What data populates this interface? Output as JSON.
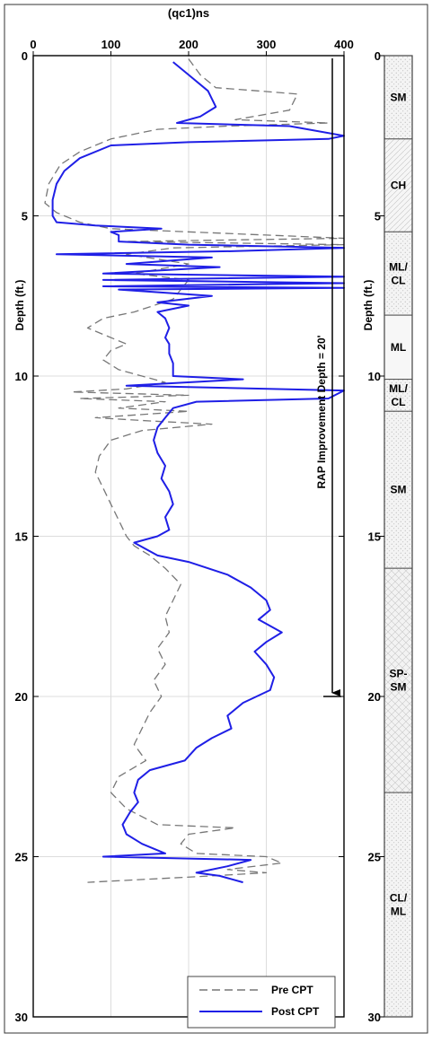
{
  "chart_data": [
    {
      "type": "line",
      "xlabel": "(qc1)ns",
      "ylabel": "Depth (ft.)",
      "xlim": [
        0,
        400
      ],
      "ylim": [
        0,
        30
      ],
      "y_inverted": true,
      "x_ticks": [
        0,
        100,
        200,
        300,
        400
      ],
      "y_ticks": [
        0,
        5,
        10,
        15,
        20,
        25,
        30
      ],
      "grid": true,
      "legend_position": "bottom-right",
      "series": [
        {
          "name": "Pre CPT",
          "color": "#777777",
          "style": "dashed",
          "points": [
            [
              200,
              0.1
            ],
            [
              215,
              0.6
            ],
            [
              235,
              1.0
            ],
            [
              290,
              1.1
            ],
            [
              340,
              1.2
            ],
            [
              330,
              1.7
            ],
            [
              260,
              2.0
            ],
            [
              380,
              2.1
            ],
            [
              250,
              2.2
            ],
            [
              160,
              2.3
            ],
            [
              100,
              2.6
            ],
            [
              60,
              3.0
            ],
            [
              35,
              3.4
            ],
            [
              20,
              4.0
            ],
            [
              15,
              4.6
            ],
            [
              30,
              4.9
            ],
            [
              60,
              5.2
            ],
            [
              100,
              5.4
            ],
            [
              300,
              5.6
            ],
            [
              400,
              5.7
            ],
            [
              120,
              5.8
            ],
            [
              400,
              5.9
            ],
            [
              180,
              6.0
            ],
            [
              120,
              6.2
            ],
            [
              200,
              6.5
            ],
            [
              130,
              6.8
            ],
            [
              200,
              7.0
            ],
            [
              190,
              7.3
            ],
            [
              180,
              7.6
            ],
            [
              130,
              8.0
            ],
            [
              90,
              8.2
            ],
            [
              70,
              8.5
            ],
            [
              90,
              8.7
            ],
            [
              120,
              9.0
            ],
            [
              100,
              9.2
            ],
            [
              90,
              9.5
            ],
            [
              110,
              9.8
            ],
            [
              140,
              10.0
            ],
            [
              170,
              10.2
            ],
            [
              120,
              10.4
            ],
            [
              50,
              10.5
            ],
            [
              200,
              10.6
            ],
            [
              60,
              10.7
            ],
            [
              170,
              10.8
            ],
            [
              110,
              11.0
            ],
            [
              200,
              11.1
            ],
            [
              80,
              11.3
            ],
            [
              150,
              11.4
            ],
            [
              230,
              11.5
            ],
            [
              140,
              11.7
            ],
            [
              100,
              12.0
            ],
            [
              85,
              12.5
            ],
            [
              80,
              13.0
            ],
            [
              90,
              13.5
            ],
            [
              100,
              14.0
            ],
            [
              110,
              14.5
            ],
            [
              120,
              15.0
            ],
            [
              130,
              15.3
            ],
            [
              150,
              15.6
            ],
            [
              170,
              16.0
            ],
            [
              190,
              16.5
            ],
            [
              180,
              17.0
            ],
            [
              170,
              17.5
            ],
            [
              175,
              18.0
            ],
            [
              160,
              18.5
            ],
            [
              170,
              19.0
            ],
            [
              155,
              19.5
            ],
            [
              165,
              20.0
            ],
            [
              150,
              20.5
            ],
            [
              140,
              21.0
            ],
            [
              130,
              21.5
            ],
            [
              145,
              22.0
            ],
            [
              110,
              22.5
            ],
            [
              100,
              23.0
            ],
            [
              120,
              23.5
            ],
            [
              160,
              24.0
            ],
            [
              260,
              24.1
            ],
            [
              200,
              24.3
            ],
            [
              190,
              24.6
            ],
            [
              210,
              24.9
            ],
            [
              300,
              25.0
            ],
            [
              320,
              25.2
            ],
            [
              250,
              25.4
            ],
            [
              300,
              25.5
            ],
            [
              230,
              25.6
            ],
            [
              150,
              25.7
            ],
            [
              70,
              25.8
            ]
          ]
        },
        {
          "name": "Post CPT",
          "color": "#1f1fe6",
          "style": "solid",
          "points": [
            [
              180,
              0.2
            ],
            [
              200,
              0.6
            ],
            [
              225,
              1.1
            ],
            [
              235,
              1.6
            ],
            [
              215,
              1.9
            ],
            [
              185,
              2.1
            ],
            [
              330,
              2.2
            ],
            [
              400,
              2.5
            ],
            [
              380,
              2.6
            ],
            [
              200,
              2.7
            ],
            [
              100,
              2.8
            ],
            [
              60,
              3.2
            ],
            [
              40,
              3.6
            ],
            [
              30,
              4.0
            ],
            [
              25,
              4.5
            ],
            [
              25,
              5.0
            ],
            [
              30,
              5.2
            ],
            [
              80,
              5.3
            ],
            [
              165,
              5.4
            ],
            [
              100,
              5.5
            ],
            [
              110,
              5.6
            ],
            [
              110,
              5.8
            ],
            [
              200,
              5.9
            ],
            [
              400,
              6.0
            ],
            [
              260,
              6.1
            ],
            [
              30,
              6.2
            ],
            [
              230,
              6.3
            ],
            [
              120,
              6.5
            ],
            [
              240,
              6.6
            ],
            [
              90,
              6.8
            ],
            [
              400,
              6.9
            ],
            [
              90,
              7.0
            ],
            [
              400,
              7.1
            ],
            [
              90,
              7.2
            ],
            [
              400,
              7.25
            ],
            [
              110,
              7.3
            ],
            [
              230,
              7.5
            ],
            [
              160,
              7.7
            ],
            [
              200,
              7.8
            ],
            [
              160,
              8.0
            ],
            [
              170,
              8.2
            ],
            [
              175,
              8.5
            ],
            [
              170,
              8.8
            ],
            [
              175,
              9.0
            ],
            [
              175,
              9.3
            ],
            [
              180,
              9.6
            ],
            [
              180,
              10.0
            ],
            [
              270,
              10.1
            ],
            [
              120,
              10.3
            ],
            [
              400,
              10.45
            ],
            [
              380,
              10.7
            ],
            [
              210,
              10.8
            ],
            [
              180,
              11.0
            ],
            [
              170,
              11.3
            ],
            [
              160,
              11.6
            ],
            [
              155,
              12.0
            ],
            [
              160,
              12.4
            ],
            [
              170,
              12.8
            ],
            [
              165,
              13.2
            ],
            [
              175,
              13.6
            ],
            [
              180,
              14.0
            ],
            [
              170,
              14.4
            ],
            [
              175,
              14.8
            ],
            [
              160,
              15.0
            ],
            [
              130,
              15.2
            ],
            [
              160,
              15.6
            ],
            [
              200,
              15.8
            ],
            [
              250,
              16.2
            ],
            [
              280,
              16.6
            ],
            [
              300,
              17.0
            ],
            [
              305,
              17.3
            ],
            [
              290,
              17.6
            ],
            [
              320,
              18.0
            ],
            [
              300,
              18.3
            ],
            [
              285,
              18.6
            ],
            [
              300,
              19.0
            ],
            [
              310,
              19.4
            ],
            [
              305,
              19.8
            ],
            [
              270,
              20.2
            ],
            [
              250,
              20.6
            ],
            [
              255,
              21.0
            ],
            [
              230,
              21.3
            ],
            [
              210,
              21.6
            ],
            [
              195,
              22.0
            ],
            [
              150,
              22.3
            ],
            [
              135,
              22.6
            ],
            [
              130,
              23.0
            ],
            [
              135,
              23.3
            ],
            [
              125,
              23.6
            ],
            [
              115,
              24.0
            ],
            [
              120,
              24.3
            ],
            [
              140,
              24.6
            ],
            [
              170,
              24.9
            ],
            [
              90,
              25.0
            ],
            [
              280,
              25.1
            ],
            [
              250,
              25.3
            ],
            [
              210,
              25.5
            ],
            [
              240,
              25.6
            ],
            [
              270,
              25.8
            ]
          ]
        }
      ],
      "annotation": {
        "text": "RAP Improvement Depth = 20'",
        "x": 385,
        "from_depth": 0,
        "to_depth": 20
      }
    },
    {
      "type": "table",
      "ylabel": "Depth (ft.)",
      "ylim": [
        0,
        30
      ],
      "y_ticks": [
        0,
        5,
        10,
        15,
        20,
        25,
        30
      ],
      "layers": [
        {
          "label": "SM",
          "top": 0,
          "bottom": 2.6,
          "pattern": "dots"
        },
        {
          "label": "CH",
          "top": 2.6,
          "bottom": 5.5,
          "pattern": "hatch"
        },
        {
          "label": "ML/\nCL",
          "top": 5.5,
          "bottom": 8.1,
          "pattern": "dots"
        },
        {
          "label": "ML",
          "top": 8.1,
          "bottom": 10.1,
          "pattern": "plain"
        },
        {
          "label": "ML/\nCL",
          "top": 10.1,
          "bottom": 11.1,
          "pattern": "dots"
        },
        {
          "label": "SM",
          "top": 11.1,
          "bottom": 16.0,
          "pattern": "dots"
        },
        {
          "label": "SP-\nSM",
          "top": 16.0,
          "bottom": 23.0,
          "pattern": "cross"
        },
        {
          "label": "CL/\nML",
          "top": 23.0,
          "bottom": 30.0,
          "pattern": "dots"
        }
      ]
    }
  ]
}
